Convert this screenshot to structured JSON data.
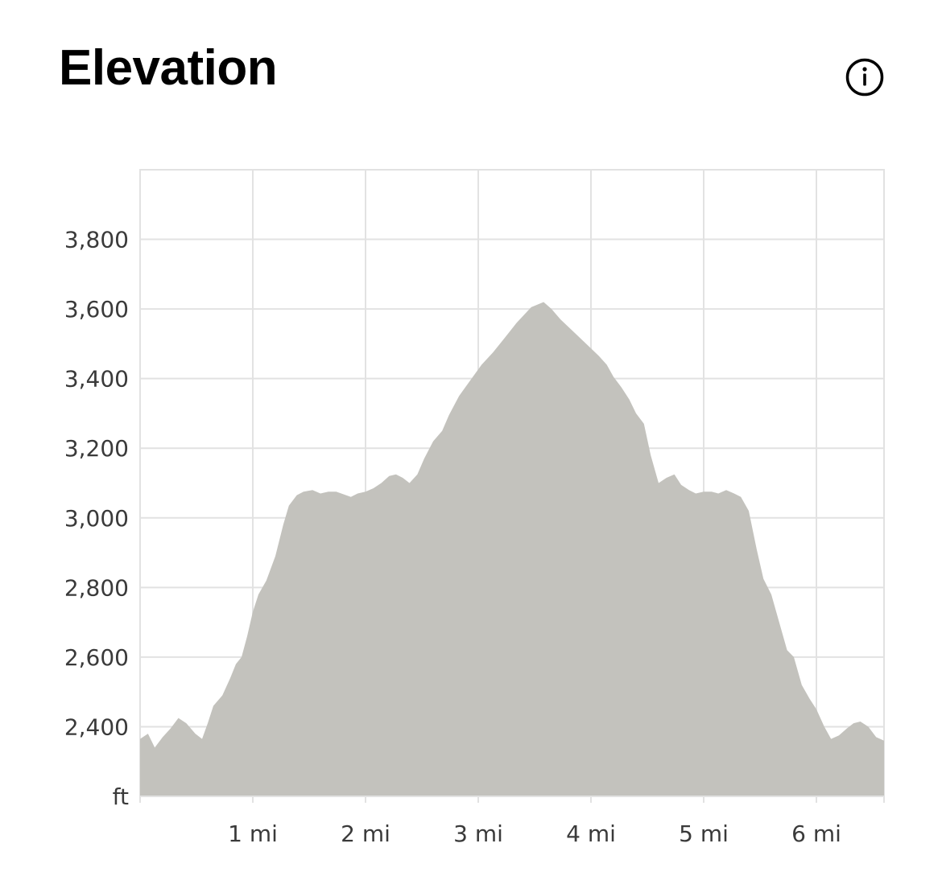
{
  "header": {
    "title": "Elevation",
    "info_icon": "info-icon"
  },
  "colors": {
    "area_fill": "#c3c2bd",
    "grid": "#e2e2e2",
    "tick_text": "#3a3a3a"
  },
  "chart_data": {
    "type": "area",
    "x_unit": "mi",
    "y_unit": "ft",
    "xlim": [
      0,
      6.6
    ],
    "ylim": [
      2200,
      4000
    ],
    "x_ticks": [
      1,
      2,
      3,
      4,
      5,
      6
    ],
    "x_tick_labels": [
      "1 mi",
      "2 mi",
      "3 mi",
      "4 mi",
      "5 mi",
      "6 mi"
    ],
    "y_ticks": [
      2400,
      2600,
      2800,
      3000,
      3200,
      3400,
      3600,
      3800
    ],
    "y_tick_labels": [
      "2,400",
      "2,600",
      "2,800",
      "3,000",
      "3,200",
      "3,400",
      "3,600",
      "3,800"
    ],
    "y_base_label": "ft",
    "grid": true,
    "series": [
      {
        "x": [
          0,
          0.07,
          0.13,
          0.2,
          0.27,
          0.34,
          0.41,
          0.49,
          0.55,
          0.6,
          0.65,
          0.73,
          0.8,
          0.85,
          0.9,
          0.95,
          1.0,
          1.05,
          1.12,
          1.2,
          1.27,
          1.32,
          1.39,
          1.45,
          1.53,
          1.6,
          1.67,
          1.74,
          1.87,
          1.93,
          2.0,
          2.07,
          2.14,
          2.21,
          2.27,
          2.33,
          2.39,
          2.46,
          2.52,
          2.6,
          2.68,
          2.74,
          2.83,
          2.93,
          3.03,
          3.13,
          3.23,
          3.34,
          3.47,
          3.58,
          3.65,
          3.73,
          3.86,
          3.99,
          4.07,
          4.14,
          4.2,
          4.27,
          4.34,
          4.4,
          4.47,
          4.53,
          4.6,
          4.67,
          4.74,
          4.8,
          4.87,
          4.93,
          5.0,
          5.07,
          5.13,
          5.2,
          5.27,
          5.33,
          5.4,
          5.47,
          5.53,
          5.6,
          5.67,
          5.74,
          5.8,
          5.87,
          5.94,
          6.0,
          6.07,
          6.13,
          6.2,
          6.27,
          6.33,
          6.39,
          6.46,
          6.53,
          6.6
        ],
        "y": [
          2365,
          2380,
          2340,
          2370,
          2395,
          2425,
          2410,
          2380,
          2365,
          2410,
          2460,
          2490,
          2540,
          2580,
          2600,
          2660,
          2730,
          2780,
          2820,
          2890,
          2980,
          3035,
          3065,
          3075,
          3080,
          3070,
          3075,
          3075,
          3060,
          3070,
          3075,
          3085,
          3100,
          3120,
          3125,
          3115,
          3100,
          3125,
          3170,
          3220,
          3250,
          3295,
          3350,
          3395,
          3440,
          3475,
          3515,
          3560,
          3605,
          3620,
          3600,
          3570,
          3530,
          3490,
          3465,
          3440,
          3405,
          3375,
          3340,
          3300,
          3270,
          3180,
          3100,
          3115,
          3125,
          3095,
          3080,
          3070,
          3075,
          3075,
          3070,
          3080,
          3070,
          3060,
          3020,
          2910,
          2825,
          2780,
          2700,
          2620,
          2600,
          2520,
          2480,
          2450,
          2400,
          2365,
          2375,
          2395,
          2410,
          2415,
          2400,
          2370,
          2360
        ]
      }
    ]
  }
}
